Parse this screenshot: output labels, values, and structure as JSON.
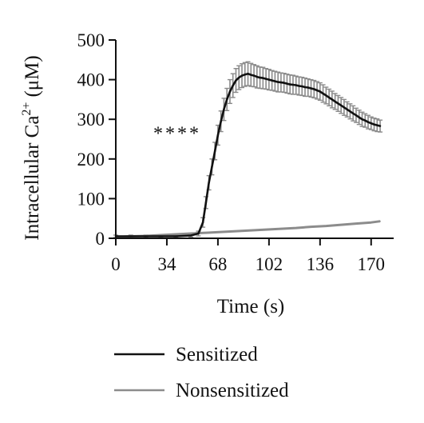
{
  "chart_data": {
    "type": "line",
    "xlabel": "Time (s)",
    "ylabel_main": "Intracellular Ca",
    "ylabel_sup": "2+",
    "ylabel_unit": "(μM)",
    "xlim": [
      0,
      185
    ],
    "ylim": [
      0,
      500
    ],
    "x_ticks": [
      0,
      34,
      68,
      102,
      136,
      170
    ],
    "y_ticks": [
      0,
      100,
      200,
      300,
      400,
      500
    ],
    "annotation": "****",
    "annotation_pos": [
      25,
      265
    ],
    "legend_position": "bottom",
    "series": [
      {
        "name": "Sensitized",
        "color": "#111111",
        "error_color": "#8a8a8a",
        "x": [
          0,
          10,
          20,
          30,
          40,
          50,
          55,
          58,
          60,
          62,
          64,
          66,
          68,
          70,
          72,
          74,
          76,
          78,
          80,
          82,
          84,
          86,
          88,
          90,
          92,
          94,
          96,
          98,
          100,
          102,
          104,
          106,
          108,
          110,
          112,
          114,
          116,
          118,
          120,
          122,
          124,
          126,
          128,
          130,
          132,
          134,
          136,
          138,
          140,
          142,
          144,
          146,
          148,
          150,
          152,
          154,
          156,
          158,
          160,
          162,
          164,
          166,
          168,
          170,
          172,
          174,
          176
        ],
        "y": [
          5,
          5,
          5,
          5,
          5,
          7,
          12,
          40,
          90,
          140,
          180,
          220,
          260,
          295,
          325,
          350,
          370,
          385,
          398,
          405,
          410,
          413,
          415,
          412,
          410,
          407,
          405,
          404,
          402,
          400,
          398,
          396,
          394,
          393,
          392,
          390,
          388,
          387,
          386,
          384,
          383,
          381,
          380,
          378,
          376,
          373,
          370,
          365,
          360,
          355,
          350,
          345,
          340,
          335,
          330,
          325,
          320,
          315,
          310,
          305,
          300,
          297,
          293,
          290,
          287,
          285,
          283
        ],
        "err": [
          3,
          3,
          3,
          3,
          3,
          4,
          6,
          12,
          15,
          18,
          20,
          22,
          25,
          26,
          28,
          28,
          30,
          30,
          30,
          30,
          30,
          30,
          30,
          29,
          28,
          28,
          27,
          27,
          26,
          26,
          25,
          25,
          25,
          24,
          24,
          24,
          24,
          24,
          23,
          23,
          23,
          23,
          22,
          22,
          22,
          22,
          22,
          22,
          21,
          21,
          21,
          20,
          20,
          20,
          20,
          19,
          19,
          19,
          18,
          18,
          18,
          17,
          17,
          16,
          16,
          16,
          15
        ]
      },
      {
        "name": "Nonsensitized",
        "color": "#8c8c8c",
        "x": [
          0,
          10,
          20,
          30,
          40,
          50,
          60,
          70,
          80,
          90,
          100,
          110,
          120,
          130,
          140,
          150,
          160,
          170,
          176
        ],
        "y": [
          3,
          5,
          6,
          8,
          10,
          12,
          14,
          16,
          18,
          20,
          22,
          24,
          26,
          29,
          31,
          34,
          37,
          40,
          43
        ],
        "err": [
          2,
          2,
          2,
          2,
          2,
          2,
          2,
          2,
          2,
          2,
          2,
          2,
          2,
          2,
          2,
          2,
          2,
          2,
          2
        ]
      }
    ]
  }
}
